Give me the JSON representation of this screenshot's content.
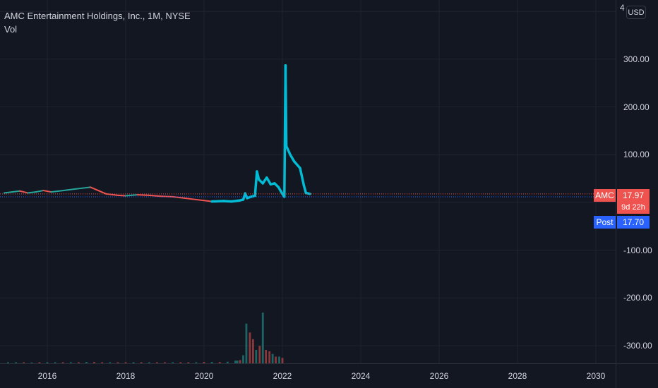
{
  "legend": {
    "title": "AMC Entertainment Holdings, Inc., 1M, NYSE",
    "volume_label": "Vol"
  },
  "currency": "USD",
  "price_axis": {
    "cut_label": "4",
    "ticks": [
      "300.00",
      "200.00",
      "100.00",
      "-100.00",
      "-200.00",
      "-300.00"
    ]
  },
  "time_axis": {
    "ticks": [
      "2016",
      "2018",
      "2020",
      "2022",
      "2024",
      "2026",
      "2028",
      "2030"
    ]
  },
  "price_badges": {
    "symbol_label": "AMC",
    "last_price": "17.97",
    "countdown": "9d 22h",
    "post_label": "Post",
    "post_price": "17.70"
  },
  "colors": {
    "background": "#131722",
    "up": "#26a69a",
    "down": "#ef5350",
    "line": "#00bcd4",
    "post": "#2962ff"
  },
  "chart_data": {
    "type": "line",
    "title": "AMC Entertainment Holdings, Inc., 1M, NYSE",
    "xlabel": "",
    "ylabel": "",
    "ylim": [
      -340,
      400
    ],
    "xlim": [
      2014.9,
      2030.8
    ],
    "grid": true,
    "series": [
      {
        "values": [
          [
            2014.9,
            20
          ],
          [
            2015.1,
            22
          ],
          [
            2015.3,
            24
          ],
          [
            2015.5,
            20
          ],
          [
            2015.7,
            22
          ],
          [
            2015.9,
            25
          ],
          [
            2016.1,
            22
          ],
          [
            2016.4,
            25
          ],
          [
            2016.7,
            28
          ],
          [
            2016.9,
            30
          ],
          [
            2017.1,
            32
          ],
          [
            2017.3,
            25
          ],
          [
            2017.5,
            18
          ],
          [
            2017.8,
            15
          ],
          [
            2018.0,
            14
          ],
          [
            2018.3,
            16
          ],
          [
            2018.6,
            15
          ],
          [
            2018.9,
            13
          ],
          [
            2019.2,
            12
          ],
          [
            2019.5,
            9
          ],
          [
            2019.8,
            6
          ],
          [
            2020.0,
            4
          ],
          [
            2020.2,
            2
          ],
          [
            2020.5,
            3
          ],
          [
            2020.7,
            2
          ],
          [
            2020.9,
            4
          ],
          [
            2021.0,
            6
          ],
          [
            2021.05,
            19
          ],
          [
            2021.1,
            9
          ],
          [
            2021.2,
            12
          ],
          [
            2021.3,
            14
          ],
          [
            2021.35,
            65
          ],
          [
            2021.4,
            48
          ],
          [
            2021.5,
            40
          ],
          [
            2021.6,
            52
          ],
          [
            2021.7,
            38
          ],
          [
            2021.8,
            40
          ],
          [
            2021.9,
            32
          ],
          [
            2022.0,
            18
          ],
          [
            2022.05,
            12
          ],
          [
            2022.08,
            287
          ],
          [
            2022.1,
            118
          ],
          [
            2022.2,
            100
          ],
          [
            2022.3,
            86
          ],
          [
            2022.45,
            72
          ],
          [
            2022.55,
            35
          ],
          [
            2022.6,
            20
          ],
          [
            2022.7,
            18
          ]
        ]
      }
    ],
    "volume": {
      "dates": [
        2015.0,
        2015.2,
        2015.4,
        2015.6,
        2015.8,
        2016.0,
        2016.2,
        2016.4,
        2016.6,
        2016.8,
        2017.0,
        2017.2,
        2017.4,
        2017.6,
        2017.8,
        2018.0,
        2018.2,
        2018.4,
        2018.6,
        2018.8,
        2019.0,
        2019.2,
        2019.4,
        2019.6,
        2019.8,
        2020.0,
        2020.2,
        2020.4,
        2020.6,
        2020.8,
        2020.85,
        2020.92,
        2021.0,
        2021.08,
        2021.17,
        2021.25,
        2021.33,
        2021.42,
        2021.5,
        2021.58,
        2021.67,
        2021.75,
        2021.83,
        2021.92,
        2022.0
      ],
      "values": [
        4,
        4,
        4,
        3,
        4,
        4,
        4,
        4,
        4,
        4,
        5,
        5,
        4,
        4,
        4,
        4,
        4,
        4,
        4,
        4,
        4,
        4,
        4,
        4,
        4,
        5,
        5,
        5,
        6,
        10,
        10,
        12,
        30,
        148,
        115,
        90,
        50,
        65,
        189,
        50,
        45,
        35,
        25,
        25,
        20
      ],
      "directions": [
        "up",
        "up",
        "down",
        "up",
        "down",
        "up",
        "up",
        "down",
        "up",
        "down",
        "up",
        "down",
        "down",
        "up",
        "down",
        "down",
        "up",
        "down",
        "up",
        "down",
        "down",
        "up",
        "down",
        "down",
        "up",
        "down",
        "up",
        "down",
        "up",
        "up",
        "up",
        "down",
        "up",
        "up",
        "down",
        "down",
        "up",
        "down",
        "up",
        "down",
        "down",
        "up",
        "down",
        "up",
        "down"
      ]
    }
  }
}
